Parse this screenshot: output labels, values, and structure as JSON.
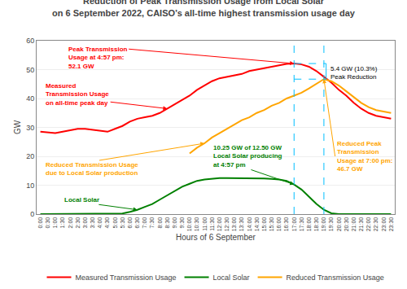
{
  "chart_data": {
    "type": "line",
    "title": "Reduction of Peak Transmission Usage from Local Solar",
    "subtitle": "on 6 September 2022, CAISO’s all-time highest transmission usage day",
    "xlabel": "Hours of 6 September",
    "ylabel": "GW",
    "categories": [
      "0:00",
      "0:30",
      "1:00",
      "1:30",
      "2:00",
      "2:30",
      "3:00",
      "3:30",
      "4:00",
      "4:30",
      "5:00",
      "5:30",
      "6:00",
      "6:30",
      "7:00",
      "7:30",
      "8:00",
      "8:30",
      "9:00",
      "9:30",
      "10:00",
      "10:30",
      "11:00",
      "11:30",
      "12:00",
      "12:30",
      "13:00",
      "13:30",
      "14:00",
      "14:30",
      "15:00",
      "15:30",
      "16:00",
      "16:30",
      "17:00",
      "17:30",
      "18:00",
      "18:30",
      "19:00",
      "19:30",
      "20:00",
      "20:30",
      "21:00",
      "21:30",
      "22:00",
      "22:30",
      "23:00",
      "23:30"
    ],
    "series": [
      {
        "name": "Measured Transmission Usage",
        "color": "#FF0000",
        "values": [
          28.5,
          28.2,
          28.0,
          28.5,
          29.0,
          29.5,
          29.5,
          29.2,
          28.8,
          28.5,
          29.5,
          30.5,
          32.0,
          33.0,
          33.5,
          34.0,
          35.0,
          36.5,
          38.0,
          39.5,
          41.0,
          43.0,
          44.5,
          46.0,
          47.0,
          47.5,
          48.0,
          48.5,
          49.5,
          50.0,
          50.5,
          51.0,
          51.5,
          52.0,
          52.1,
          51.8,
          51.0,
          49.5,
          47.5,
          45.5,
          43.0,
          41.0,
          38.5,
          36.5,
          35.0,
          34.0,
          33.5,
          33.0
        ]
      },
      {
        "name": "Local Solar",
        "color": "#008000",
        "values": [
          0.0,
          0.0,
          0.0,
          0.0,
          0.0,
          0.0,
          0.0,
          0.0,
          0.0,
          0.0,
          0.0,
          0.2,
          0.8,
          1.5,
          2.5,
          3.5,
          5.0,
          6.5,
          8.0,
          9.5,
          10.5,
          11.5,
          12.0,
          12.3,
          12.5,
          12.5,
          12.5,
          12.5,
          12.5,
          12.4,
          12.3,
          12.2,
          12.0,
          11.5,
          10.25,
          8.5,
          6.0,
          3.5,
          1.5,
          0.3,
          0.0,
          0.0,
          0.0,
          0.0,
          0.0,
          0.0,
          0.0,
          0.0
        ]
      },
      {
        "name": "Reduced Transmission Usage",
        "color": "#FFA500",
        "values": [
          null,
          null,
          null,
          null,
          null,
          null,
          null,
          null,
          null,
          null,
          null,
          null,
          null,
          null,
          null,
          null,
          null,
          null,
          null,
          null,
          21.0,
          23.0,
          24.5,
          26.5,
          28.0,
          29.5,
          31.0,
          32.5,
          33.5,
          35.0,
          36.0,
          37.5,
          38.5,
          40.0,
          41.0,
          42.0,
          43.5,
          45.0,
          46.7,
          46.0,
          44.5,
          42.5,
          40.5,
          38.5,
          37.0,
          36.0,
          35.5,
          35.0
        ]
      }
    ],
    "ylim": [
      0,
      60
    ],
    "yticks": [
      0,
      10,
      20,
      30,
      40,
      50,
      60
    ],
    "grid": true,
    "legend": "bottom",
    "annotations": [
      {
        "text": "Peak Transmission\nUsage at 4:57 pm:\n52.1 GW",
        "color": "red",
        "x": "17:00",
        "y": 52.1
      },
      {
        "text": "Measured\nTransmission Usage\non all-time peak day",
        "color": "red",
        "x": "8:30",
        "y": 36.5
      },
      {
        "text": "Local Solar",
        "color": "green",
        "x": "6:30",
        "y": 1.5
      },
      {
        "text": "Reduced Transmission Usage\ndue to Local Solar production",
        "color": "orange",
        "x": "11:00",
        "y": 24.5
      },
      {
        "text": "10.25 GW of 12.50 GW\nLocal Solar producing\nat 4:57 pm",
        "color": "green",
        "x": "17:00",
        "y": 10.25
      },
      {
        "text": "Reduced Peak\nTransmission\nUsage at 7:00 pm:\n46.7 GW",
        "color": "orange",
        "x": "19:00",
        "y": 46.7
      }
    ],
    "bracket": {
      "color": "#00BFFF",
      "label": "5.4 GW (10.3%)\nPeak Reduction",
      "peak": {
        "x": "17:00",
        "y": 52.1
      },
      "reduced_peak": {
        "x": "19:00",
        "y": 46.7
      }
    }
  }
}
